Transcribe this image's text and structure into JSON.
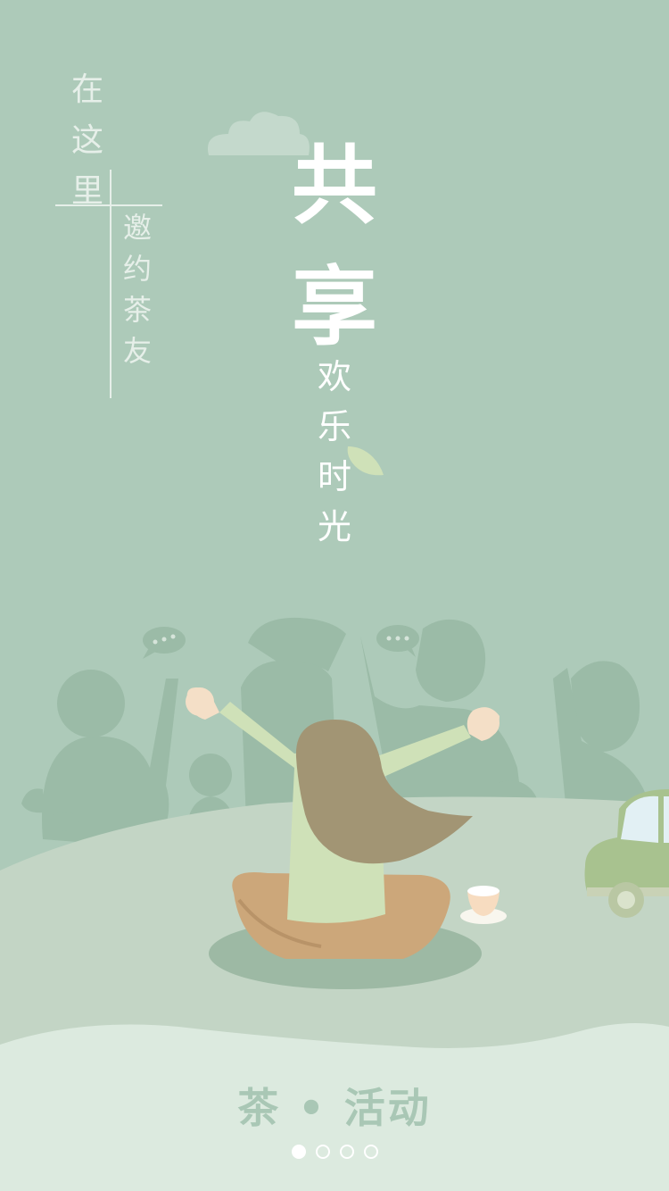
{
  "headline_left_top": [
    "在",
    "这",
    "里"
  ],
  "headline_left_bottom": [
    "邀",
    "约",
    "茶",
    "友"
  ],
  "headline_big": [
    "共",
    "享"
  ],
  "headline_small": [
    "欢",
    "乐",
    "时",
    "光"
  ],
  "footer_title": "茶 • 活动",
  "pagination": {
    "total": 4,
    "active_index": 0
  },
  "colors": {
    "background": "#adcab9",
    "hill": "#c3d5c5",
    "footer": "#dceadf",
    "accent": "#a9c7b5"
  },
  "icons": [
    "cloud-icon",
    "leaf-icon",
    "speech-bubble-icon",
    "tea-cup-icon",
    "car-icon"
  ]
}
